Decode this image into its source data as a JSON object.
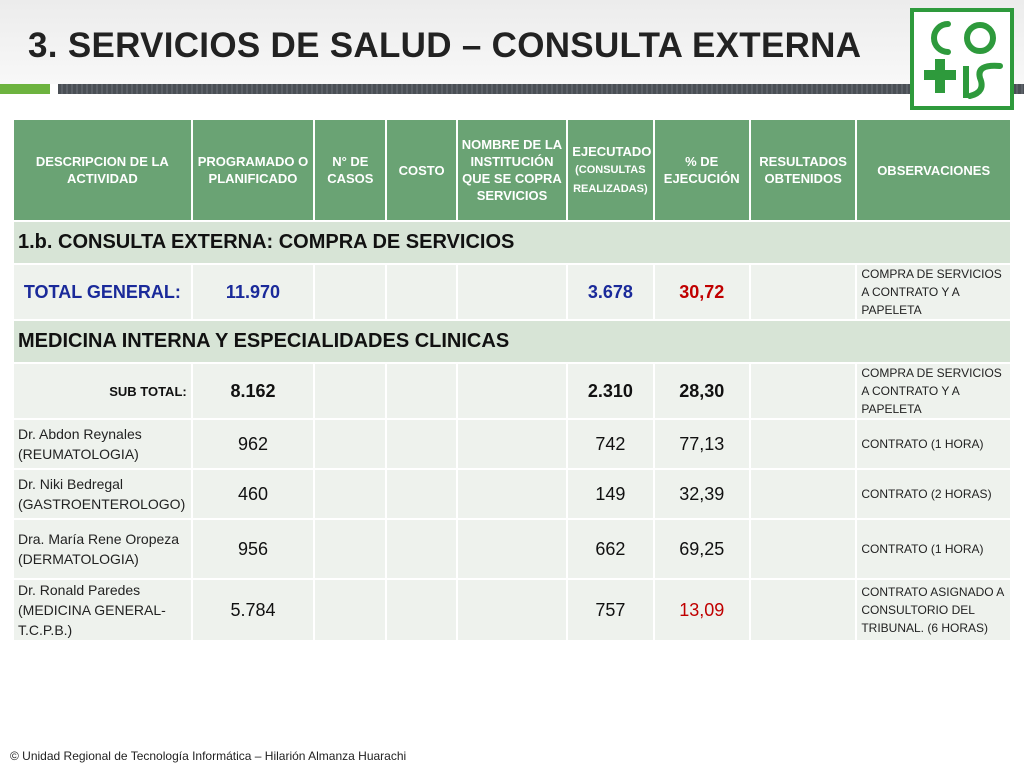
{
  "slide": {
    "title": "3. SERVICIOS DE SALUD – CONSULTA EXTERNA",
    "footer": "© Unidad Regional de Tecnología Informática – Hilarión Almanza Huarachi",
    "logo_alt": "CPS"
  },
  "headers": {
    "descripcion": "DESCRIPCION DE LA ACTIVIDAD",
    "programado": "PROGRAMADO O PLANIFICADO",
    "casos": "N° DE CASOS",
    "costo": "COSTO",
    "institucion": "NOMBRE DE LA INSTITUCIÓN QUE SE COPRA SERVICIOS",
    "ejecutado": "EJECUTADO",
    "ejecutado_sub": "(CONSULTAS REALIZADAS)",
    "porcentaje": "% DE EJECUCIÓN",
    "resultados": "RESULTADOS OBTENIDOS",
    "observaciones": "OBSERVACIONES"
  },
  "section1": "1.b. CONSULTA EXTERNA: COMPRA DE SERVICIOS",
  "total": {
    "label": "TOTAL GENERAL:",
    "programado": "11.970",
    "ejecutado": "3.678",
    "porcentaje": "30,72",
    "observacion": "COMPRA DE SERVICIOS A CONTRATO Y A PAPELETA"
  },
  "section2": "MEDICINA INTERNA Y ESPECIALIDADES CLINICAS",
  "subtotal": {
    "label": "SUB TOTAL:",
    "programado": "8.162",
    "ejecutado": "2.310",
    "porcentaje": "28,30",
    "observacion": "COMPRA DE SERVICIOS A CONTRATO Y A PAPELETA"
  },
  "rows": [
    {
      "descripcion": "Dr. Abdon Reynales (REUMATOLOGIA)",
      "programado": "962",
      "ejecutado": "742",
      "porcentaje": "77,13",
      "observacion": "CONTRATO  (1 HORA)"
    },
    {
      "descripcion": "Dr. Niki Bedregal (GASTROENTEROLOGO)",
      "programado": "460",
      "ejecutado": "149",
      "porcentaje": "32,39",
      "observacion": "CONTRATO (2 HORAS)"
    },
    {
      "descripcion": "Dra. María Rene Oropeza (DERMATOLOGIA)",
      "programado": "956",
      "ejecutado": "662",
      "porcentaje": "69,25",
      "observacion": "CONTRATO (1 HORA)"
    },
    {
      "descripcion": "Dr. Ronald Paredes (MEDICINA GENERAL-T.C.P.B.)",
      "programado": "5.784",
      "ejecutado": "757",
      "porcentaje": "13,09",
      "observacion": "CONTRATO ASIGNADO A CONSULTORIO DEL TRIBUNAL. (6 HORAS)"
    }
  ]
}
